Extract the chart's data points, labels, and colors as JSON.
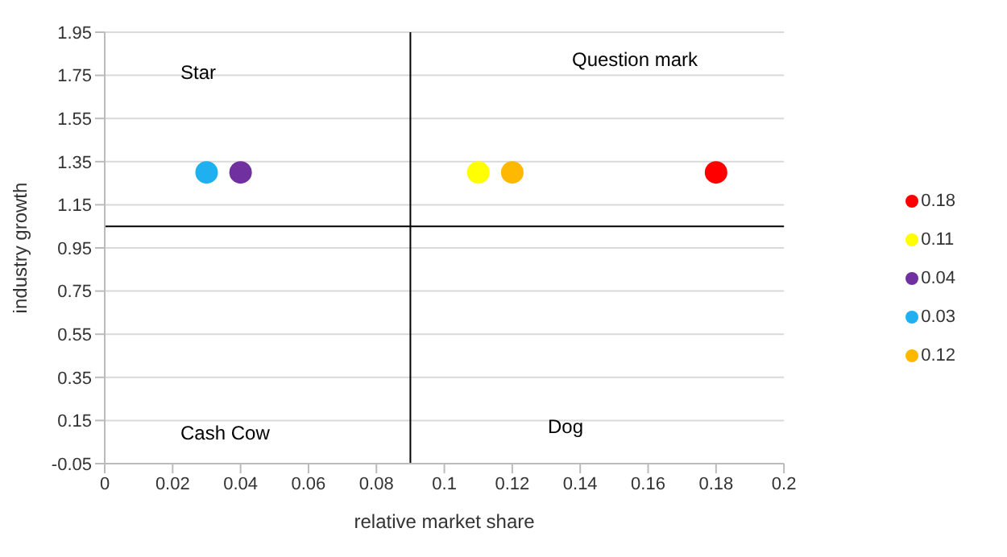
{
  "chart_data": {
    "type": "scatter",
    "xlabel": "relative market share",
    "ylabel": "industry growth",
    "xlim": [
      0,
      0.2
    ],
    "xticks": [
      0,
      0.02,
      0.04,
      0.06,
      0.08,
      0.1,
      0.12,
      0.14,
      0.16,
      0.18,
      0.2
    ],
    "ylim": [
      -0.05,
      1.95
    ],
    "yticks": [
      -0.05,
      0.15,
      0.35,
      0.55,
      0.75,
      0.95,
      1.15,
      1.35,
      1.55,
      1.75,
      1.95
    ],
    "series": [
      {
        "name": "0.18",
        "color": "#ff0000",
        "x": [
          0.18
        ],
        "values": [
          1.3
        ]
      },
      {
        "name": "0.11",
        "color": "#ffff00",
        "x": [
          0.11
        ],
        "values": [
          1.3
        ]
      },
      {
        "name": "0.04",
        "color": "#7030a0",
        "x": [
          0.04
        ],
        "values": [
          1.3
        ]
      },
      {
        "name": "0.03",
        "color": "#1fb0f0",
        "x": [
          0.03
        ],
        "values": [
          1.3
        ]
      },
      {
        "name": "0.12",
        "color": "#ffb800",
        "x": [
          0.12
        ],
        "values": [
          1.3
        ]
      }
    ],
    "ref_lines": [
      {
        "axis": "x",
        "value": 0.09,
        "color": "#000000"
      },
      {
        "axis": "y",
        "value": 1.05,
        "color": "#000000"
      }
    ],
    "annotations": [
      "Star",
      "Question mark",
      "Cash Cow",
      "Dog"
    ],
    "grid": "y",
    "legend": "right",
    "marker": "circle"
  }
}
